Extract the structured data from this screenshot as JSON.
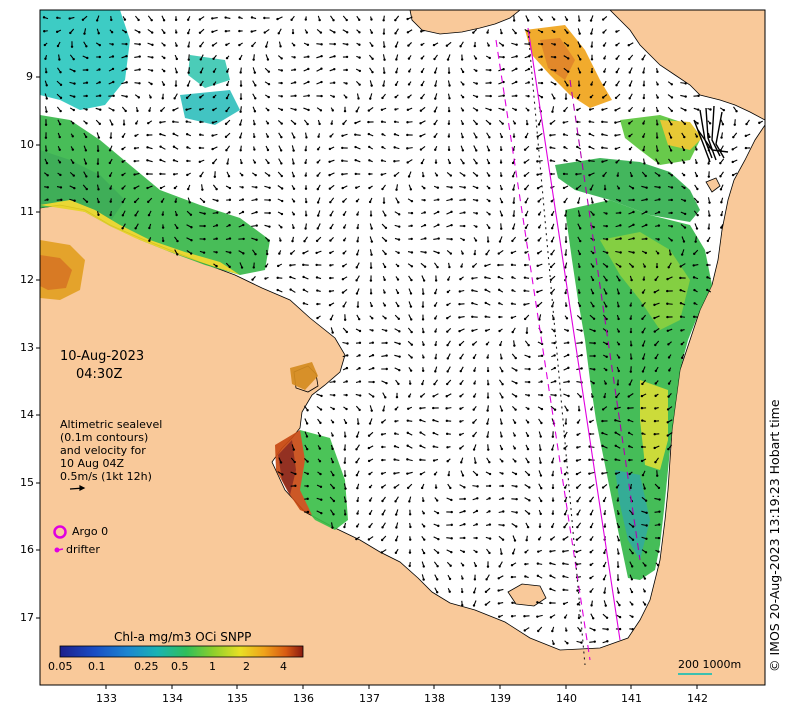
{
  "date_line": "10-Aug-2023",
  "time_line": "04:30Z",
  "legend_text": {
    "line1": "Altimetric sealevel",
    "line2": "(0.1m contours)",
    "line3": "and velocity for",
    "line4": "10 Aug 04Z",
    "line5": "0.5m/s (1kt 12h)"
  },
  "markers": {
    "argo_label": "Argo 0",
    "drifter_label": "drifter"
  },
  "colorbar": {
    "title": "Chl-a mg/m3 OCi SNPP",
    "tick_labels": [
      "0.05",
      "0.1",
      "0.25",
      "0.5",
      "1",
      "2",
      "4"
    ],
    "colors": [
      "#1c1f8c",
      "#1a4cc4",
      "#1c86d0",
      "#1ab3b3",
      "#2fbf5a",
      "#8ccf2c",
      "#e8e024",
      "#f0a21a",
      "#d85a12",
      "#8a1a10"
    ]
  },
  "scale_bar": {
    "label": "200  1000m"
  },
  "axes": {
    "y_ticks": [
      "9",
      "10",
      "11",
      "12",
      "13",
      "14",
      "15",
      "16",
      "17"
    ],
    "x_ticks": [
      "133",
      "134",
      "135",
      "136",
      "137",
      "138",
      "139",
      "140",
      "141",
      "142"
    ]
  },
  "credit": "© IMOS 20-Aug-2023 13:19:23 Hobart time",
  "colors": {
    "land": "#f9c99a",
    "ocean": "#ffffff",
    "track": "#e000e0",
    "scale": "#3cc0b0"
  }
}
